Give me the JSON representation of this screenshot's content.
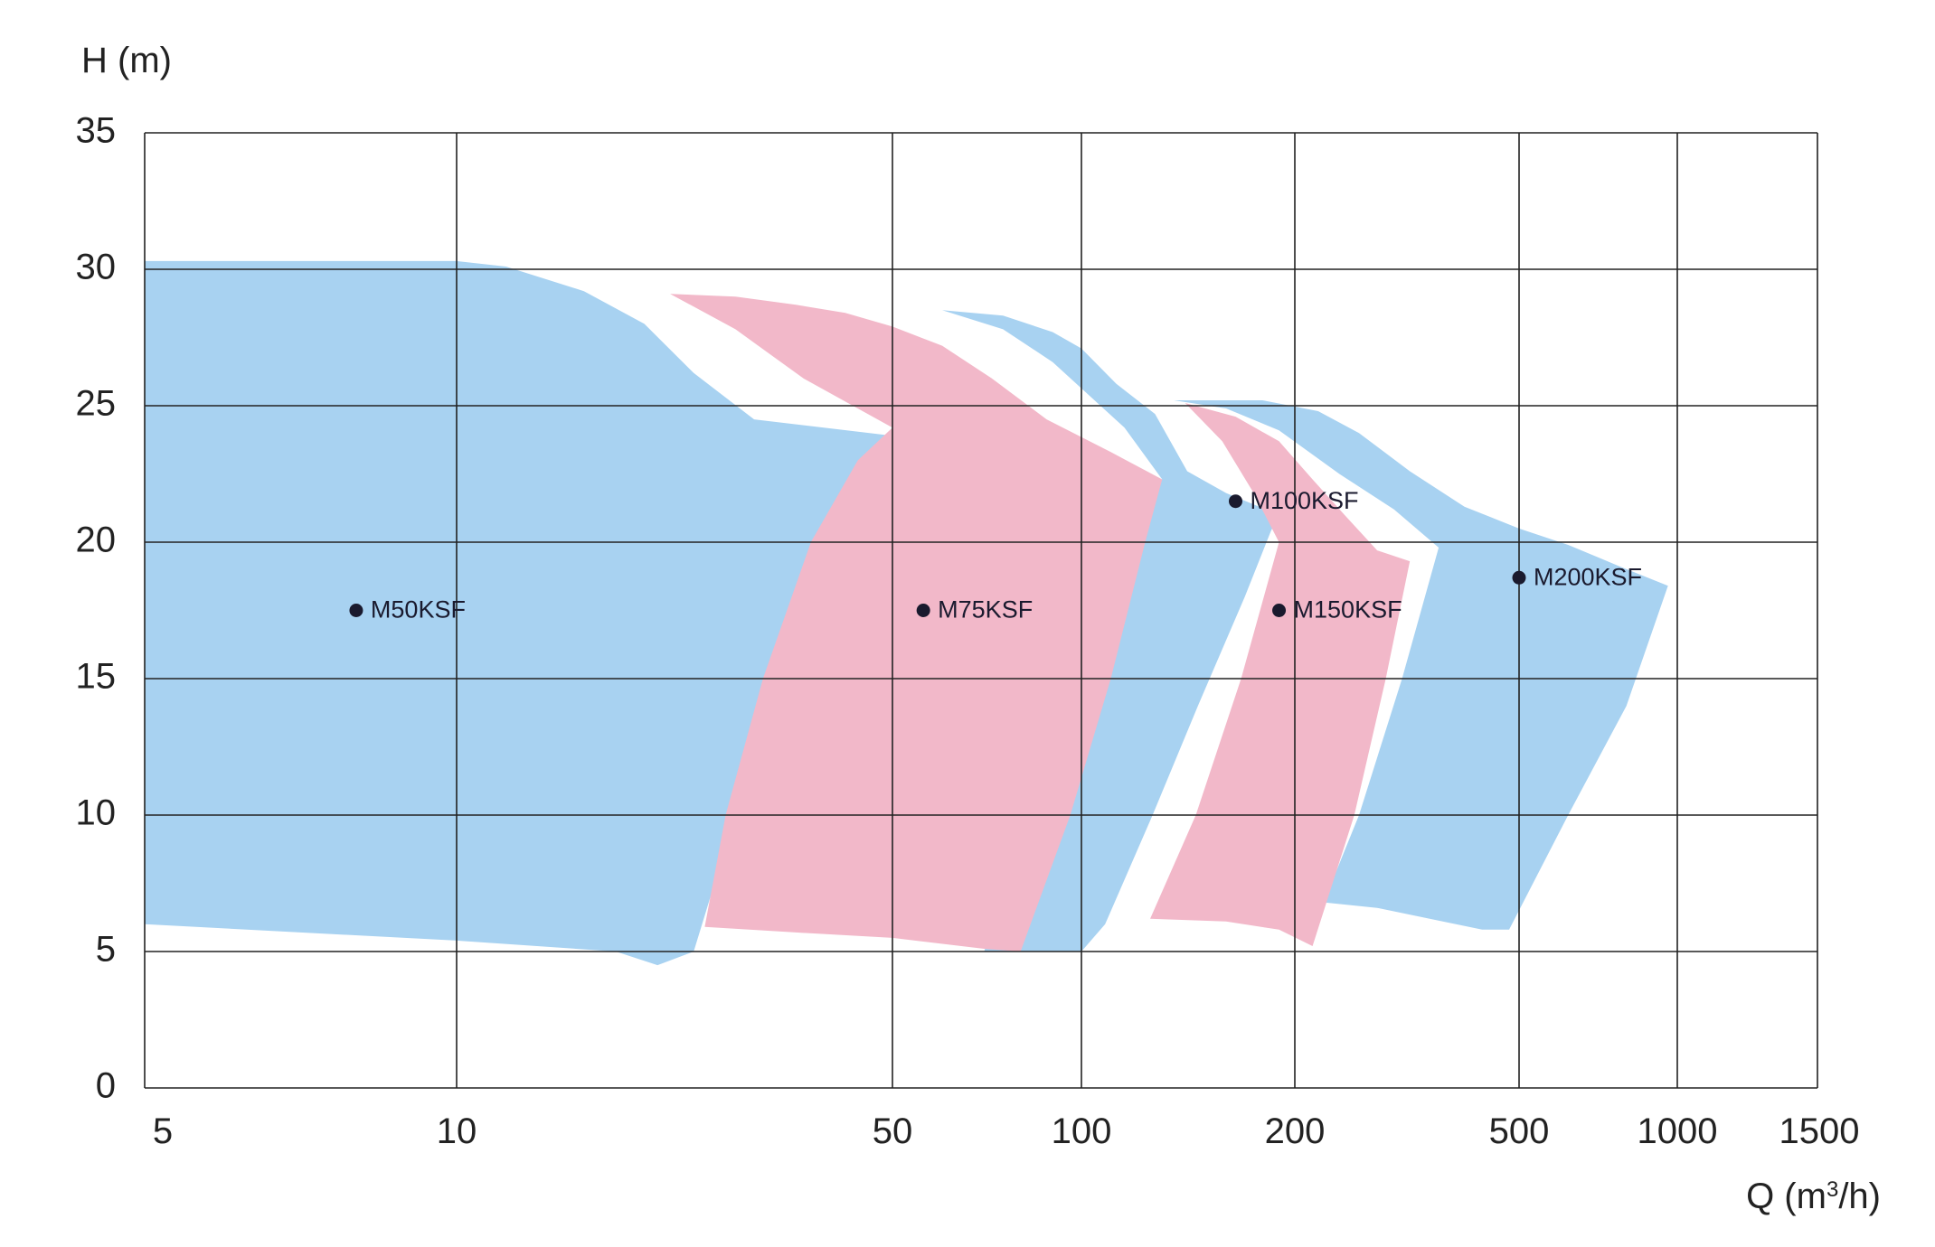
{
  "chart_data": {
    "type": "area",
    "ylabel": "H (m)",
    "xlabel_main": "Q (m",
    "xlabel_sup": "3",
    "xlabel_tail": "/h)",
    "x_scale": "piecewise",
    "x_ticks": [
      5,
      10,
      50,
      100,
      200,
      500,
      1000,
      1500
    ],
    "x_tick_labels": [
      "5",
      "10",
      "50",
      "100",
      "200",
      "500",
      "1000",
      "1500"
    ],
    "y_ticks": [
      0,
      5,
      10,
      15,
      20,
      25,
      30,
      35
    ],
    "y_tick_labels": [
      "0",
      "5",
      "10",
      "15",
      "20",
      "25",
      "30",
      "35"
    ],
    "ylim": [
      0,
      35
    ],
    "xlim": [
      5,
      1500
    ],
    "grid": true,
    "colors": {
      "blue": "#a8d2f1",
      "pink": "#f2b8c9",
      "grid": "#222222",
      "marker": "#1a1a2e"
    },
    "series": [
      {
        "name": "M50KSF",
        "color": "blue",
        "label_point": [
          8,
          17.5
        ],
        "boundary": [
          [
            5,
            30.3
          ],
          [
            10,
            30.3
          ],
          [
            12,
            30.1
          ],
          [
            16,
            29.2
          ],
          [
            20,
            28
          ],
          [
            24,
            26.2
          ],
          [
            30,
            24.5
          ],
          [
            50,
            23.9
          ],
          [
            40,
            20
          ],
          [
            33,
            15
          ],
          [
            28,
            10
          ],
          [
            24,
            5
          ],
          [
            21,
            4.5
          ],
          [
            18,
            5
          ],
          [
            10,
            5.4
          ],
          [
            5,
            6
          ]
        ]
      },
      {
        "name": "M100KSF",
        "color": "blue",
        "label_point": [
          165,
          21.5
        ],
        "boundary": [
          [
            60,
            28.5
          ],
          [
            75,
            28.3
          ],
          [
            90,
            27.7
          ],
          [
            100,
            27.1
          ],
          [
            112,
            25.8
          ],
          [
            127,
            24.7
          ],
          [
            141,
            22.6
          ],
          [
            160,
            21.8
          ],
          [
            190,
            21
          ],
          [
            185,
            20.4
          ],
          [
            170,
            18
          ],
          [
            146,
            14
          ],
          [
            126,
            10
          ],
          [
            108,
            6
          ],
          [
            100,
            5
          ],
          [
            70,
            5
          ],
          [
            80,
            10
          ],
          [
            95,
            15
          ],
          [
            110,
            20
          ],
          [
            130,
            22.3
          ],
          [
            115,
            24.2
          ],
          [
            90,
            26.6
          ],
          [
            75,
            27.8
          ]
        ]
      },
      {
        "name": "M200KSF",
        "color": "blue",
        "label_point": [
          500,
          18.7
        ],
        "boundary": [
          [
            135,
            25.2
          ],
          [
            180,
            25.2
          ],
          [
            220,
            24.8
          ],
          [
            260,
            24
          ],
          [
            320,
            22.6
          ],
          [
            400,
            21.3
          ],
          [
            500,
            20.5
          ],
          [
            620,
            19.9
          ],
          [
            780,
            19.1
          ],
          [
            960,
            18.4
          ],
          [
            800,
            14
          ],
          [
            620,
            10
          ],
          [
            480,
            5.8
          ],
          [
            430,
            5.8
          ],
          [
            280,
            6.6
          ],
          [
            225,
            6.8
          ],
          [
            260,
            10
          ],
          [
            310,
            15
          ],
          [
            360,
            19.8
          ],
          [
            300,
            21.2
          ],
          [
            240,
            22.5
          ],
          [
            190,
            24.1
          ],
          [
            160,
            24.9
          ]
        ]
      },
      {
        "name": "M75KSF",
        "color": "pink",
        "label_point": [
          56,
          17.5
        ],
        "boundary": [
          [
            22,
            29.1
          ],
          [
            28,
            29
          ],
          [
            35,
            28.7
          ],
          [
            42,
            28.4
          ],
          [
            50,
            27.9
          ],
          [
            60,
            27.2
          ],
          [
            72,
            26
          ],
          [
            88,
            24.5
          ],
          [
            110,
            23.3
          ],
          [
            130,
            22.3
          ],
          [
            123,
            20
          ],
          [
            110,
            15
          ],
          [
            96,
            10
          ],
          [
            80,
            5
          ],
          [
            70,
            5.1
          ],
          [
            50,
            5.5
          ],
          [
            35,
            5.7
          ],
          [
            25,
            5.9
          ],
          [
            27,
            10
          ],
          [
            31,
            15
          ],
          [
            37,
            20
          ],
          [
            44,
            23
          ],
          [
            50,
            24.2
          ],
          [
            36,
            26
          ],
          [
            28,
            27.8
          ]
        ]
      },
      {
        "name": "M150KSF",
        "color": "pink",
        "label_point": [
          190,
          17.5
        ],
        "boundary": [
          [
            140,
            25.1
          ],
          [
            165,
            24.6
          ],
          [
            190,
            23.7
          ],
          [
            215,
            22.3
          ],
          [
            245,
            21
          ],
          [
            280,
            19.7
          ],
          [
            320,
            19.3
          ],
          [
            290,
            15
          ],
          [
            255,
            10
          ],
          [
            215,
            5.2
          ],
          [
            190,
            5.8
          ],
          [
            160,
            6.1
          ],
          [
            125,
            6.2
          ],
          [
            145,
            10
          ],
          [
            168,
            15
          ],
          [
            190,
            20
          ],
          [
            175,
            21.8
          ],
          [
            158,
            23.7
          ]
        ]
      }
    ]
  }
}
